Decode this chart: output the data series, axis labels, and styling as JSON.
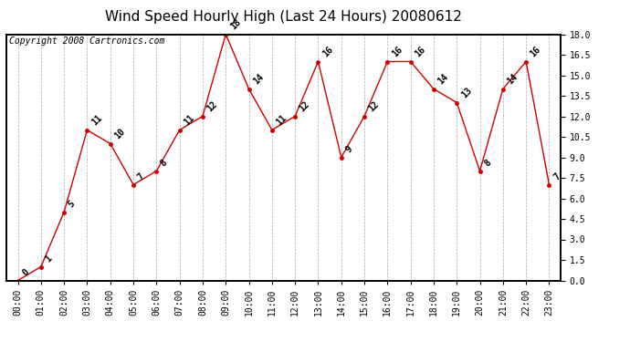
{
  "title": "Wind Speed Hourly High (Last 24 Hours) 20080612",
  "copyright": "Copyright 2008 Cartronics.com",
  "hours": [
    "00:00",
    "01:00",
    "02:00",
    "03:00",
    "04:00",
    "05:00",
    "06:00",
    "07:00",
    "08:00",
    "09:00",
    "10:00",
    "11:00",
    "12:00",
    "13:00",
    "14:00",
    "15:00",
    "16:00",
    "17:00",
    "18:00",
    "19:00",
    "20:00",
    "21:00",
    "22:00",
    "23:00"
  ],
  "values": [
    0,
    1,
    5,
    11,
    10,
    7,
    8,
    11,
    12,
    18,
    14,
    11,
    12,
    16,
    9,
    12,
    16,
    16,
    14,
    13,
    8,
    14,
    16,
    7
  ],
  "line_color": "#cc0000",
  "marker_color": "#cc0000",
  "bg_color": "#ffffff",
  "grid_color": "#aaaaaa",
  "ylim": [
    0.0,
    18.0
  ],
  "yticks_right": [
    0.0,
    1.5,
    3.0,
    4.5,
    6.0,
    7.5,
    9.0,
    10.5,
    12.0,
    13.5,
    15.0,
    16.5,
    18.0
  ],
  "title_fontsize": 11,
  "label_fontsize": 7,
  "annot_fontsize": 7,
  "copyright_fontsize": 7
}
